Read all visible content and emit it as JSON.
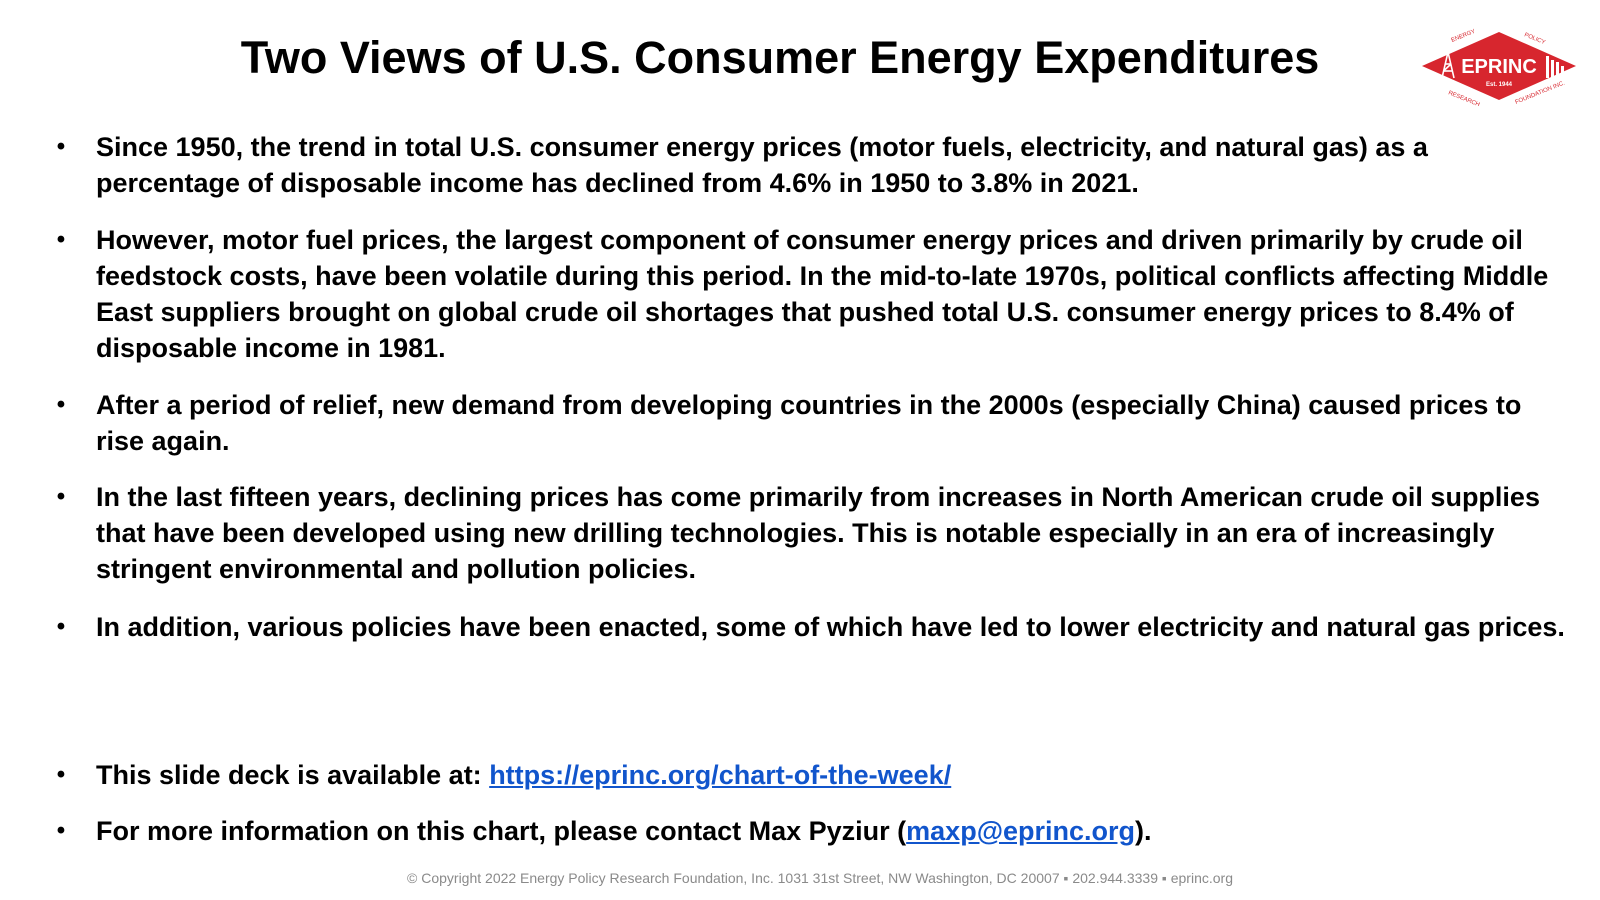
{
  "title": "Two Views of U.S. Consumer Energy Expenditures",
  "logo": {
    "name": "EPRINC",
    "established": "Est. 1944",
    "ring_top_left": "ENERGY",
    "ring_top_right": "POLICY",
    "ring_bottom_left": "RESEARCH",
    "ring_bottom_right": "FOUNDATION INC.",
    "color": "#d7262e"
  },
  "bullets": [
    "Since 1950, the trend in total U.S. consumer energy prices (motor fuels, electricity, and natural gas) as a percentage of disposable income has declined from 4.6% in 1950 to 3.8% in 2021.",
    "However, motor fuel prices, the largest component of consumer energy prices and driven primarily by crude oil feedstock costs, have been volatile during this period. In the mid-to-late 1970s, political conflicts affecting Middle East suppliers brought on global crude oil shortages that pushed total U.S. consumer energy prices to 8.4% of disposable income in 1981.",
    "After a period of relief, new demand from developing countries in the 2000s (especially China) caused prices to rise again.",
    "In the last fifteen years, declining prices has come primarily from increases in North American crude oil supplies that have been developed using new drilling technologies. This is notable especially in an era of increasingly stringent environmental and pollution policies.",
    "In addition, various policies have been enacted, some of which have led to lower electricity and natural gas prices."
  ],
  "deck_link": {
    "prefix": "This slide deck is available at: ",
    "url_text": "https://eprinc.org/chart-of-the-week/"
  },
  "contact": {
    "prefix": "For more information on this chart, please contact Max Pyziur (",
    "email": "maxp@eprinc.org",
    "suffix": ")."
  },
  "bullet_symbol": "•",
  "link_color": "#1155cc",
  "footer": "© Copyright 2022 Energy Policy Research Foundation, Inc. 1031 31st Street, NW Washington, DC 20007 ▪ 202.944.3339 ▪ eprinc.org"
}
